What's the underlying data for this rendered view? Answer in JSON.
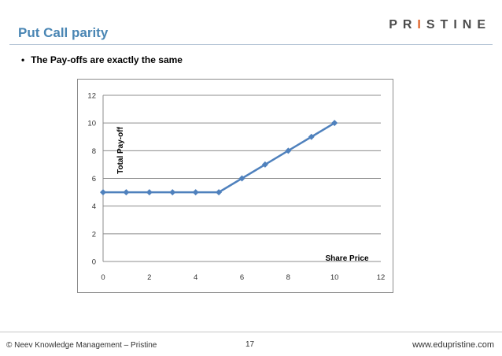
{
  "header": {
    "title": "Put Call parity",
    "logo_text": "PRISTINE",
    "accent_color": "#e0622a",
    "title_color": "#4a86b4"
  },
  "bullet": {
    "marker": "•",
    "text": "The Pay-offs are exactly the same"
  },
  "chart_data": {
    "type": "line",
    "title": "",
    "xlabel": "Share Price",
    "ylabel": "Total Pay-off",
    "xlim": [
      0,
      12
    ],
    "ylim": [
      0,
      12
    ],
    "x_ticks": [
      0,
      2,
      4,
      6,
      8,
      10,
      12
    ],
    "y_ticks": [
      0,
      2,
      4,
      6,
      8,
      10,
      12
    ],
    "grid": true,
    "legend": "none",
    "series": [
      {
        "color": "#4f81bd",
        "marker": "diamond",
        "x": [
          0,
          1,
          2,
          3,
          4,
          5,
          6,
          7,
          8,
          9,
          10
        ],
        "y": [
          5,
          5,
          5,
          5,
          5,
          5,
          6,
          7,
          8,
          9,
          10
        ]
      }
    ]
  },
  "footer": {
    "left": "© Neev Knowledge Management – Pristine",
    "page_number": "17",
    "right": "www.edupristine.com"
  }
}
